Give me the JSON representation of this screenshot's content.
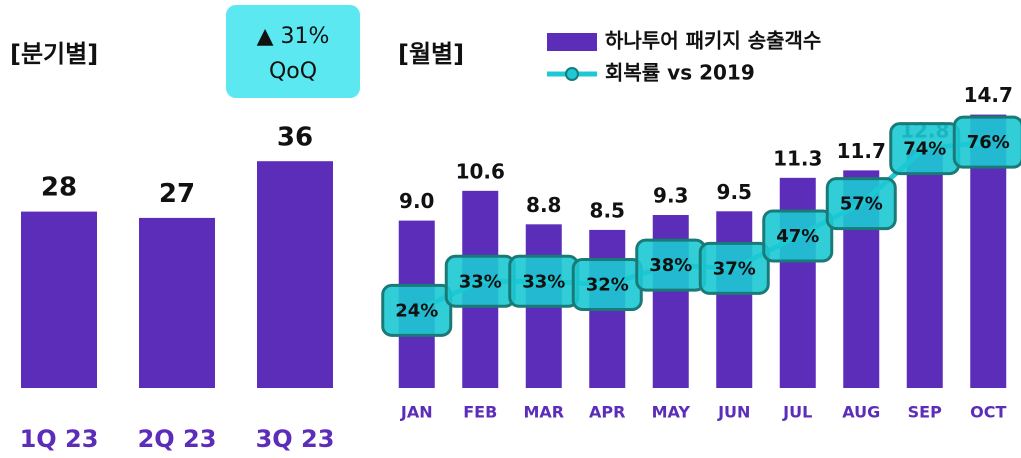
{
  "chart_data": [
    {
      "type": "bar",
      "title": "[분기별]",
      "categories": [
        "1Q 23",
        "2Q 23",
        "3Q 23"
      ],
      "values": [
        28,
        27,
        36
      ],
      "color": "#5b2db8",
      "annotations": [
        "▲ 31%",
        "QoQ"
      ],
      "ylim": [
        0,
        40
      ]
    },
    {
      "type": "bar",
      "title": "[월별]",
      "categories": [
        "JAN",
        "FEB",
        "MAR",
        "APR",
        "MAY",
        "JUN",
        "JUL",
        "AUG",
        "SEP",
        "OCT"
      ],
      "series": [
        {
          "name": "하나투어 패키지 송출객수",
          "color": "#5b2db8",
          "values": [
            9.0,
            10.6,
            8.8,
            8.5,
            9.3,
            9.5,
            11.3,
            11.7,
            12.8,
            14.7
          ],
          "value_labels": [
            "9.0",
            "10.6",
            "8.8",
            "8.5",
            "9.3",
            "9.5",
            "11.3",
            "11.7",
            "12.8",
            "14.7"
          ]
        },
        {
          "name": "회복률 vs 2019",
          "color": "#1cc9d4",
          "axis": "y2",
          "values": [
            24,
            33,
            33,
            32,
            38,
            37,
            47,
            57,
            74,
            76
          ],
          "value_labels": [
            "24%",
            "33%",
            "33%",
            "32%",
            "38%",
            "37%",
            "47%",
            "57%",
            "74%",
            "76%"
          ]
        }
      ],
      "ylim": [
        0,
        20
      ],
      "y2lim": [
        0,
        115
      ]
    }
  ]
}
